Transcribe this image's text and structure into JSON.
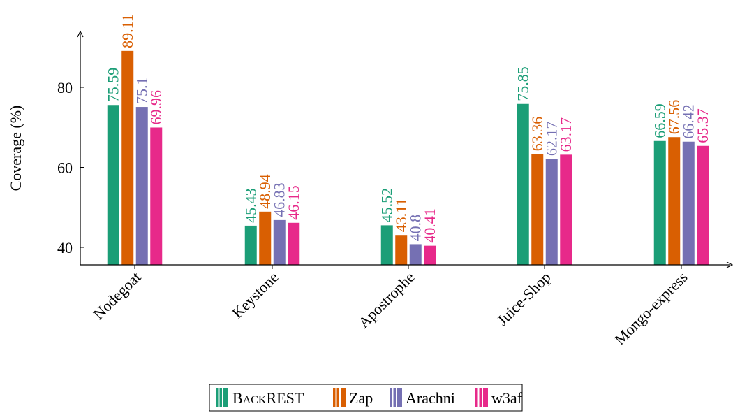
{
  "chart_data": {
    "type": "bar",
    "title": "",
    "xlabel": "",
    "ylabel": "Coverage (%)",
    "categories": [
      "Nodegoat",
      "Keystone",
      "Apostrophe",
      "Juice-Shop",
      "Mongo-express"
    ],
    "series": [
      {
        "name": "BACKREST",
        "color": "#1b9e77",
        "values": [
          75.59,
          45.43,
          45.52,
          75.85,
          66.59
        ]
      },
      {
        "name": "Zap",
        "color": "#d95f02",
        "values": [
          89.11,
          48.94,
          43.11,
          63.36,
          67.56
        ]
      },
      {
        "name": "Arachni",
        "color": "#7570b3",
        "values": [
          75.1,
          46.83,
          40.8,
          62.17,
          66.42
        ]
      },
      {
        "name": "w3af",
        "color": "#e7298a",
        "values": [
          69.96,
          46.15,
          40.41,
          63.17,
          65.37
        ]
      }
    ],
    "yticks": [
      40,
      60,
      80
    ],
    "ylim": [
      35.6,
      98.2
    ],
    "grid": false,
    "legend": "bottom",
    "data_labels": true
  }
}
